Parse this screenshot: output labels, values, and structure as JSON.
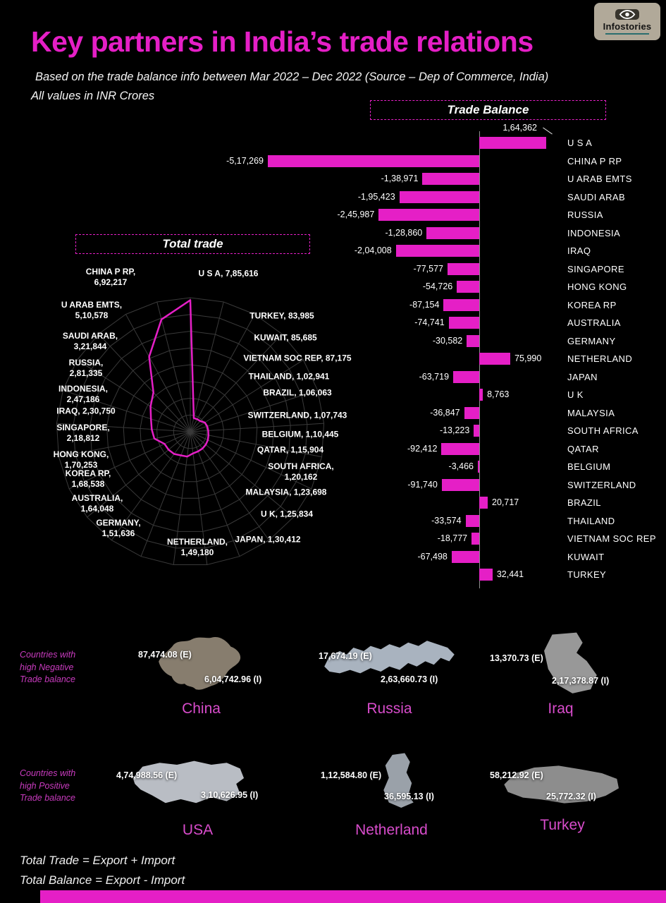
{
  "header": {
    "title": "Key partners in India’s trade relations",
    "subtitle": "Based on the trade balance info between Mar 2022 – Dec 2022 (Source – Dep of Commerce, India)",
    "units_note": "All values in INR Crores",
    "logo_brand": "Infostories"
  },
  "sections": {
    "trade_balance_title": "Trade Balance",
    "total_trade_title": "Total trade"
  },
  "maps": {
    "negative": {
      "note": "Countries with high Negative Trade balance",
      "items": [
        {
          "name": "China",
          "export_label": "87,474.08 (E)",
          "import_label": "6,04,742.96 (I)"
        },
        {
          "name": "Russia",
          "export_label": "17,674.19 (E)",
          "import_label": "2,63,660.73 (I)"
        },
        {
          "name": "Iraq",
          "export_label": "13,370.73 (E)",
          "import_label": "2,17,378.87 (I)"
        }
      ]
    },
    "positive": {
      "note": "Countries with high Positive Trade balance",
      "items": [
        {
          "name": "USA",
          "export_label": "4,74,988.56 (E)",
          "import_label": "3,10,626.95 (I)"
        },
        {
          "name": "Netherland",
          "export_label": "1,12,584.80 (E)",
          "import_label": "36,595.13 (I)"
        },
        {
          "name": "Turkey",
          "export_label": "58,212.92 (E)",
          "import_label": "25,772.32 (I)"
        }
      ]
    }
  },
  "footer": {
    "line1": "Total Trade = Export + Import",
    "line2": "Total Balance = Export - Import"
  },
  "colors": {
    "accent": "#e51fc6",
    "background": "#000000"
  },
  "chart_data": [
    {
      "type": "bar",
      "title": "Trade Balance",
      "orientation": "horizontal",
      "unit": "INR Crores",
      "categories": [
        "U S A",
        "CHINA P RP",
        "U ARAB EMTS",
        "SAUDI ARAB",
        "RUSSIA",
        "INDONESIA",
        "IRAQ",
        "SINGAPORE",
        "HONG KONG",
        "KOREA RP",
        "AUSTRALIA",
        "GERMANY",
        "NETHERLAND",
        "JAPAN",
        "U K",
        "MALAYSIA",
        "SOUTH AFRICA",
        "QATAR",
        "BELGIUM",
        "SWITZERLAND",
        "BRAZIL",
        "THAILAND",
        "VIETNAM SOC REP",
        "KUWAIT",
        "TURKEY"
      ],
      "values": [
        164362,
        -517269,
        -138971,
        -195423,
        -245987,
        -128860,
        -204008,
        -77577,
        -54726,
        -87154,
        -74741,
        -30582,
        75990,
        -63719,
        8763,
        -36847,
        -13223,
        -92412,
        -3466,
        -91740,
        20717,
        -33574,
        -18777,
        -67498,
        32441
      ],
      "value_labels": [
        "1,64,362",
        "-5,17,269",
        "-1,38,971",
        "-1,95,423",
        "-2,45,987",
        "-1,28,860",
        "-2,04,008",
        "-77,577",
        "-54,726",
        "-87,154",
        "-74,741",
        "-30,582",
        "75,990",
        "-63,719",
        "8,763",
        "-36,847",
        "-13,223",
        "-92,412",
        "-3,466",
        "-91,740",
        "20,717",
        "-33,574",
        "-18,777",
        "-67,498",
        "32,441"
      ],
      "xlim": [
        -517269,
        164362
      ],
      "zero_axis": true,
      "bar_color": "#e51fc6"
    },
    {
      "type": "radar",
      "title": "Total trade",
      "unit": "INR Crores",
      "categories": [
        "U S A",
        "CHINA P RP",
        "U ARAB EMTS",
        "SAUDI ARAB",
        "RUSSIA",
        "INDONESIA",
        "IRAQ",
        "SINGAPORE",
        "HONG KONG",
        "KOREA RP",
        "AUSTRALIA",
        "GERMANY",
        "NETHERLAND",
        "JAPAN",
        "U K",
        "MALAYSIA",
        "SOUTH AFRICA",
        "QATAR",
        "BELGIUM",
        "SWITZERLAND",
        "BRAZIL",
        "THAILAND",
        "VIETNAM SOC REP",
        "KUWAIT",
        "TURKEY"
      ],
      "values": [
        785616,
        692217,
        510578,
        321844,
        281335,
        247186,
        230750,
        218812,
        170253,
        168538,
        164048,
        151636,
        149180,
        130412,
        125834,
        123698,
        120162,
        115904,
        110445,
        107743,
        106063,
        102941,
        87175,
        85685,
        83985
      ],
      "labels": [
        "U S A, 7,85,616",
        "CHINA P RP, 6,92,217",
        "U ARAB EMTS, 5,10,578",
        "SAUDI ARAB, 3,21,844",
        "RUSSIA, 2,81,335",
        "INDONESIA, 2,47,186",
        "IRAQ, 2,30,750",
        "SINGAPORE, 2,18,812",
        "HONG KONG, 1,70,253",
        "KOREA RP, 1,68,538",
        "AUSTRALIA, 1,64,048",
        "GERMANY, 1,51,636",
        "NETHERLAND, 1,49,180",
        "JAPAN, 1,30,412",
        "U K, 1,25,834",
        "MALAYSIA, 1,23,698",
        "SOUTH AFRICA, 1,20,162",
        "QATAR, 1,15,904",
        "BELGIUM, 1,10,445",
        "SWITZERLAND, 1,07,743",
        "BRAZIL, 1,06,063",
        "THAILAND, 1,02,941",
        "VIETNAM SOC REP, 87,175",
        "KUWAIT, 85,685",
        "TURKEY, 83,985"
      ],
      "axis_max": 800000,
      "line_color": "#e51fc6",
      "grid": true
    },
    {
      "type": "table",
      "title": "Countries with high Negative Trade balance",
      "columns": [
        "Country",
        "Export",
        "Import"
      ],
      "rows": [
        [
          "China",
          "87,474.08",
          "6,04,742.96"
        ],
        [
          "Russia",
          "17,674.19",
          "2,63,660.73"
        ],
        [
          "Iraq",
          "13,370.73",
          "2,17,378.87"
        ]
      ]
    },
    {
      "type": "table",
      "title": "Countries with high Positive Trade balance",
      "columns": [
        "Country",
        "Export",
        "Import"
      ],
      "rows": [
        [
          "USA",
          "4,74,988.56",
          "3,10,626.95"
        ],
        [
          "Netherland",
          "1,12,584.80",
          "36,595.13"
        ],
        [
          "Turkey",
          "58,212.92",
          "25,772.32"
        ]
      ]
    }
  ]
}
